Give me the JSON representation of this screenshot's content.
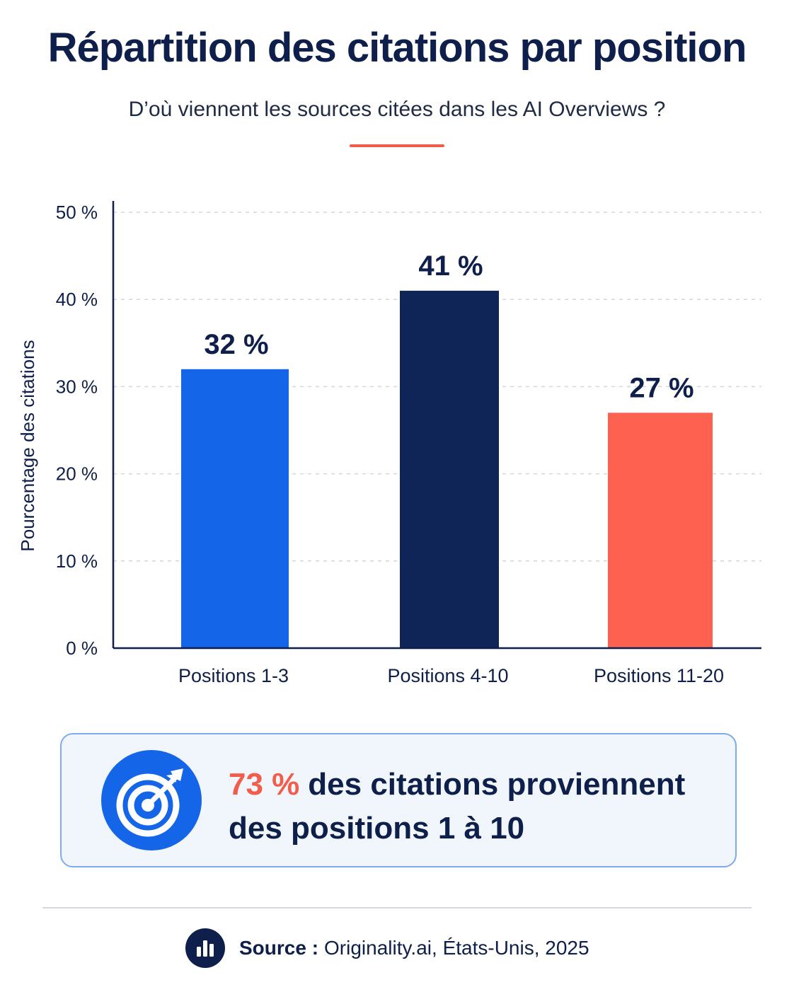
{
  "header": {
    "title": "Répartition des citations par position",
    "subtitle": "D’où viennent les sources citées dans les AI Overviews ?"
  },
  "chart_data": {
    "type": "bar",
    "categories": [
      "Positions 1-3",
      "Positions 4-10",
      "Positions 11-20"
    ],
    "values": [
      32,
      41,
      27
    ],
    "value_labels": [
      "32 %",
      "41 %",
      "27 %"
    ],
    "colors": [
      "#1565e8",
      "#0f2557",
      "#ff6150"
    ],
    "title": "",
    "xlabel": "",
    "ylabel": "Pourcentage des citations",
    "ylim": [
      0,
      50
    ],
    "yticks": [
      0,
      10,
      20,
      30,
      40,
      50
    ],
    "ytick_labels": [
      "0 %",
      "10 %",
      "20 %",
      "30 %",
      "40 %",
      "50 %"
    ],
    "grid": true,
    "legend": "none"
  },
  "callout": {
    "icon": "target-arrow-icon",
    "highlight": "73 %",
    "text_line1": "des citations proviennent",
    "text_line2": "des positions 1 à 10"
  },
  "footer": {
    "icon": "bar-chart-icon",
    "source_label": "Source :",
    "source_text": "Originality.ai, États-Unis, 2025"
  },
  "colors": {
    "title": "#0f1f4b",
    "accent": "#f25c4a",
    "primary_blue": "#1565e8",
    "navy": "#0f2557",
    "coral": "#ff6150"
  }
}
